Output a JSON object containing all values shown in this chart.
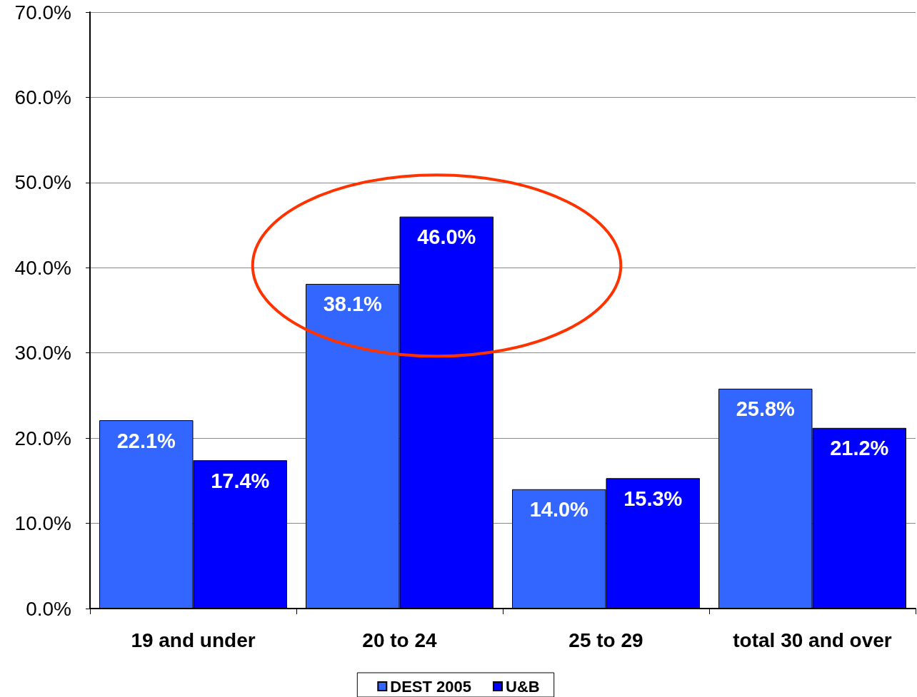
{
  "chart_data": {
    "type": "bar",
    "categories": [
      "19 and under",
      "20 to 24",
      "25 to 29",
      "total 30 and over"
    ],
    "series": [
      {
        "name": "DEST 2005",
        "color": "#3366ff",
        "values": [
          22.1,
          38.1,
          14.0,
          25.8
        ],
        "value_labels": [
          "22.1%",
          "38.1%",
          "14.0%",
          "25.8%"
        ]
      },
      {
        "name": "U&B",
        "color": "#0000ff",
        "values": [
          17.4,
          46.0,
          15.3,
          21.2
        ],
        "value_labels": [
          "17.4%",
          "46.0%",
          "15.3%",
          "21.2%"
        ]
      }
    ],
    "ylim": [
      0,
      70
    ],
    "yticks": [
      {
        "value": 0,
        "label": "0.0%"
      },
      {
        "value": 10,
        "label": "10.0%"
      },
      {
        "value": 20,
        "label": "20.0%"
      },
      {
        "value": 30,
        "label": "30.0%"
      },
      {
        "value": 40,
        "label": "40.0%"
      },
      {
        "value": 50,
        "label": "50.0%"
      },
      {
        "value": 60,
        "label": "60.0%"
      },
      {
        "value": 70,
        "label": "70.0%"
      }
    ],
    "grid": "y",
    "legend": "bottom"
  }
}
